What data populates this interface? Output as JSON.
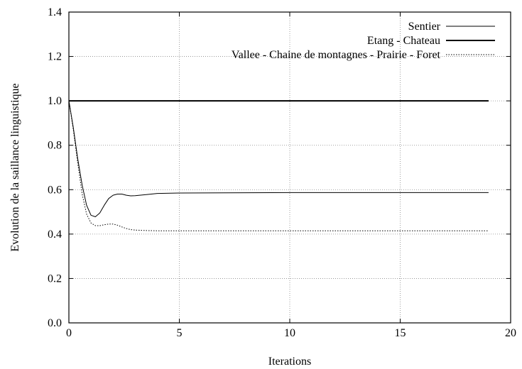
{
  "chart_data": {
    "type": "line",
    "title": "",
    "xlabel": "Iterations",
    "ylabel": "Evolution de la saillance linguistique",
    "xlim": [
      0,
      20
    ],
    "ylim": [
      0,
      1.4
    ],
    "x_ticks": [
      "0",
      "5",
      "10",
      "15",
      "20"
    ],
    "y_ticks": [
      "0.0",
      "0.2",
      "0.4",
      "0.6",
      "0.8",
      "1.0",
      "1.2",
      "1.4"
    ],
    "grid": "dotted",
    "legend_position": "top-right",
    "series": [
      {
        "name": "Sentier",
        "style": "thin-solid",
        "x": [
          0,
          0.2,
          0.4,
          0.6,
          0.8,
          1.0,
          1.2,
          1.4,
          1.6,
          1.8,
          2.0,
          2.2,
          2.4,
          2.6,
          2.8,
          3.0,
          3.5,
          4.0,
          5,
          7,
          10,
          15,
          19
        ],
        "y": [
          1.0,
          0.88,
          0.74,
          0.62,
          0.53,
          0.485,
          0.478,
          0.495,
          0.53,
          0.56,
          0.575,
          0.58,
          0.58,
          0.575,
          0.572,
          0.573,
          0.578,
          0.583,
          0.585,
          0.586,
          0.587,
          0.587,
          0.587
        ]
      },
      {
        "name": "Etang - Chateau",
        "style": "thick-solid",
        "x": [
          0,
          19
        ],
        "y": [
          1.0,
          1.0
        ]
      },
      {
        "name": "Vallee - Chaine de montagnes - Prairie - Foret",
        "style": "dotted",
        "x": [
          0,
          0.2,
          0.4,
          0.6,
          0.8,
          1.0,
          1.2,
          1.4,
          1.6,
          1.8,
          2.0,
          2.2,
          2.4,
          2.6,
          2.8,
          3.0,
          3.5,
          4.0,
          5,
          7,
          10,
          15,
          19
        ],
        "y": [
          1.0,
          0.87,
          0.72,
          0.58,
          0.49,
          0.45,
          0.438,
          0.438,
          0.442,
          0.445,
          0.445,
          0.44,
          0.432,
          0.425,
          0.42,
          0.418,
          0.416,
          0.415,
          0.415,
          0.415,
          0.415,
          0.415,
          0.415
        ]
      }
    ]
  }
}
